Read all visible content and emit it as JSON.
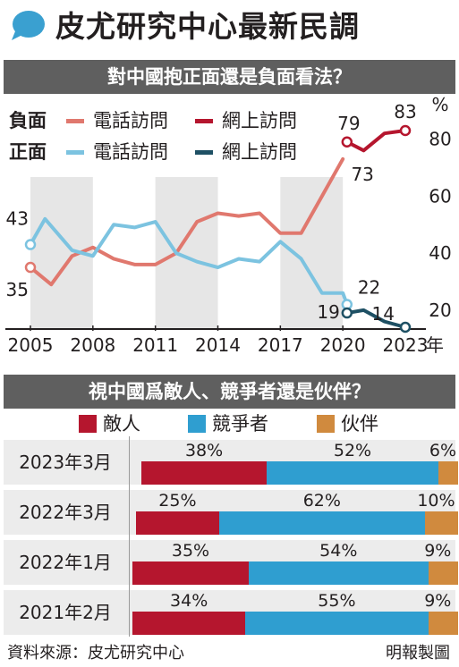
{
  "header": {
    "title": "皮尤研究中心最新民調",
    "bubble_color": "#3aa0d0"
  },
  "line_section": {
    "title": "對中國抱正面還是負面看法？"
  },
  "bar_section": {
    "title": "視中國爲敵人、競爭者還是伙伴？"
  },
  "chart_data": [
    {
      "type": "line",
      "title": "對中國抱正面還是負面看法？",
      "y_unit": "%",
      "x_unit": "年",
      "ylim": [
        10,
        88
      ],
      "xlim": [
        2004.8,
        2023.4
      ],
      "x_ticks": [
        "2005",
        "2008",
        "2011",
        "2014",
        "2017",
        "2020",
        "2023"
      ],
      "y_ticks": [
        "20",
        "40",
        "60",
        "80"
      ],
      "legend": {
        "negative_label": "負面",
        "positive_label": "正面",
        "phone_label": "電話訪問",
        "online_label": "網上訪問"
      },
      "series": [
        {
          "name": "負面 電話訪問",
          "color": "#e0786e",
          "x": [
            2005,
            2006,
            2007,
            2008,
            2009,
            2010,
            2011,
            2012,
            2013,
            2014,
            2015,
            2016,
            2017,
            2018,
            2019,
            2020
          ],
          "y": [
            35,
            29,
            39,
            42,
            38,
            36,
            36,
            40,
            51,
            54,
            53,
            54,
            47,
            47,
            60,
            73
          ]
        },
        {
          "name": "負面 網上訪問",
          "color": "#b5162e",
          "x": [
            2020.2,
            2021,
            2022,
            2023
          ],
          "y": [
            79,
            76,
            82,
            83
          ]
        },
        {
          "name": "正面 電話訪問",
          "color": "#7cc3e0",
          "x": [
            2005,
            2005.7,
            2007,
            2008,
            2009,
            2010,
            2011,
            2012,
            2013,
            2014,
            2015,
            2016,
            2017,
            2018,
            2019,
            2020,
            2020.2
          ],
          "y": [
            43,
            52,
            41,
            39,
            50,
            49,
            51,
            40,
            37,
            35,
            38,
            37,
            44,
            38,
            26,
            26,
            22
          ]
        },
        {
          "name": "正面 網上訪問",
          "color": "#1e5064",
          "x": [
            2020.2,
            2021,
            2022,
            2023
          ],
          "y": [
            19,
            20,
            16,
            14
          ]
        }
      ],
      "labels": [
        {
          "text": "43",
          "x": 2005,
          "y": 43
        },
        {
          "text": "35",
          "x": 2005,
          "y": 35
        },
        {
          "text": "79",
          "x": 2020.2,
          "y": 79
        },
        {
          "text": "73",
          "x": 2020,
          "y": 73
        },
        {
          "text": "83",
          "x": 2023,
          "y": 83
        },
        {
          "text": "22",
          "x": 2020.2,
          "y": 22
        },
        {
          "text": "19",
          "x": 2020.2,
          "y": 19
        },
        {
          "text": "14",
          "x": 2023,
          "y": 14
        }
      ],
      "shading": "alternating vertical bands"
    },
    {
      "type": "bar",
      "stacked": true,
      "horizontal": true,
      "title": "視中國爲敵人、競爭者還是伙伴？",
      "categories": [
        "2023年3月",
        "2022年3月",
        "2022年1月",
        "2021年2月"
      ],
      "series": [
        {
          "name": "敵人",
          "color": "#b5162e",
          "values": [
            38,
            25,
            35,
            34
          ],
          "labels": [
            "38%",
            "25%",
            "35%",
            "34%"
          ]
        },
        {
          "name": "競爭者",
          "color": "#2f9ed0",
          "values": [
            52,
            62,
            54,
            55
          ],
          "labels": [
            "52%",
            "62%",
            "54%",
            "55%"
          ]
        },
        {
          "name": "伙伴",
          "color": "#d08a3e",
          "values": [
            6,
            10,
            9,
            9
          ],
          "labels": [
            "6%",
            "10%",
            "9%",
            "9%"
          ]
        }
      ]
    }
  ],
  "footer": {
    "source": "資料來源：皮尤研究中心",
    "credit": "明報製圖"
  }
}
